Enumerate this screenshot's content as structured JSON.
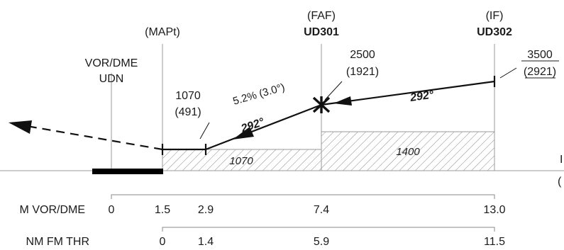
{
  "fixes": {
    "mapt": {
      "role": "(MAPt)"
    },
    "faf": {
      "role": "(FAF)",
      "name": "UD301"
    },
    "iff": {
      "role": "(IF)",
      "name": "UD302"
    },
    "navaid": {
      "line1": "VOR/DME",
      "line2": "UDN"
    }
  },
  "altitudes": {
    "mapt": {
      "alt": "1070",
      "height": "(491)"
    },
    "faf": {
      "alt": "2500",
      "height": "(1921)"
    },
    "iff": {
      "alt": "3500",
      "height": "(2921)"
    }
  },
  "segments": {
    "final": {
      "gradient": "5.2% (3.0°)",
      "track": "292°"
    },
    "intermediate": {
      "track": "292°"
    }
  },
  "oca_boxes": {
    "final": "1070",
    "intermediate": "1400"
  },
  "edge_labels": {
    "right_mid": "I",
    "right_low": "("
  },
  "scales": {
    "vor_dme": {
      "label": "M VOR/DME",
      "values": [
        "0",
        "1.5",
        "2.9",
        "7.4",
        "13.0"
      ]
    },
    "thr": {
      "label": "NM FM THR",
      "values": [
        "0",
        "1.4",
        "5.9",
        "11.5"
      ]
    }
  }
}
